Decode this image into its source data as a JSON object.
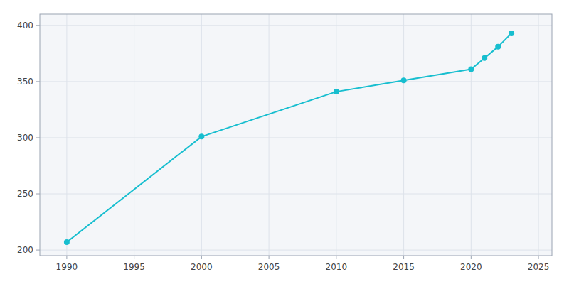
{
  "chart_data": {
    "type": "line",
    "x": [
      1990,
      2000,
      2010,
      2015,
      2020,
      2021,
      2022,
      2023
    ],
    "values": [
      207,
      301,
      341,
      351,
      361,
      371,
      381,
      393
    ],
    "color": "#17becf",
    "marker": "circle",
    "xlim": [
      1988,
      2026
    ],
    "ylim": [
      195,
      410
    ],
    "xticks": [
      1990,
      1995,
      2000,
      2005,
      2010,
      2015,
      2020,
      2025
    ],
    "yticks": [
      200,
      250,
      300,
      350,
      400
    ],
    "grid": true
  }
}
